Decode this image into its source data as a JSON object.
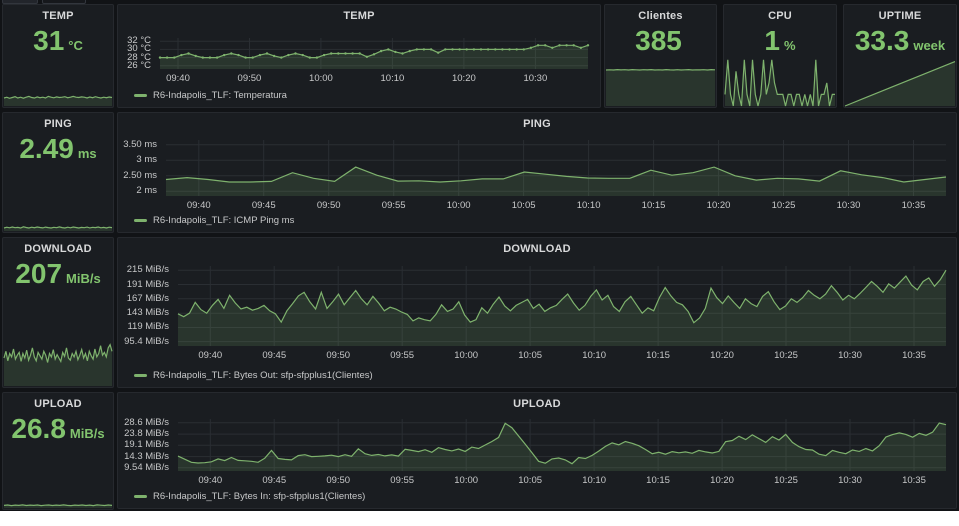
{
  "colors": {
    "accent_green": "#7eb26d",
    "value_green": "#82c46e",
    "panel_bg": "#1a1d21",
    "page_bg": "#111316"
  },
  "panels": {
    "stat_temp": {
      "title": "TEMP",
      "value": "31",
      "unit": "°C"
    },
    "stat_clientes": {
      "title": "Clientes",
      "value": "385",
      "unit": ""
    },
    "stat_cpu": {
      "title": "CPU",
      "value": "1",
      "unit": "%"
    },
    "stat_uptime": {
      "title": "UPTIME",
      "value": "33.3",
      "unit": "week"
    },
    "stat_ping": {
      "title": "PING",
      "value": "2.49",
      "unit": "ms"
    },
    "stat_download": {
      "title": "DOWNLOAD",
      "value": "207",
      "unit": "MiB/s"
    },
    "stat_upload": {
      "title": "UPLOAD",
      "value": "26.8",
      "unit": "MiB/s"
    }
  },
  "chart_data": {
    "temp": {
      "type": "line",
      "title": "TEMP",
      "series_name": "R6-Indapolis_TLF: Temperatura",
      "ylim": [
        25.2,
        32.8
      ],
      "y_ticks": [
        {
          "label": "32 °C",
          "v": 32
        },
        {
          "label": "30 °C",
          "v": 30
        },
        {
          "label": "28 °C",
          "v": 28
        },
        {
          "label": "26 °C",
          "v": 26
        }
      ],
      "x_ticks": [
        "09:40",
        "09:50",
        "10:00",
        "10:10",
        "10:20",
        "10:30"
      ],
      "x_first_frac": 0.042,
      "x_step_frac": 0.167,
      "markers": true,
      "values": [
        28,
        28,
        28,
        28.6,
        29,
        28.4,
        28,
        28,
        28,
        28.6,
        29,
        28.6,
        28,
        28,
        28.6,
        29,
        28.4,
        28,
        28.6,
        29,
        28.6,
        28,
        28,
        28.6,
        29,
        29,
        29,
        29,
        29,
        28.2,
        28.8,
        29.6,
        30,
        29.4,
        29,
        29.6,
        30,
        30,
        30,
        29.2,
        30,
        30,
        30,
        30,
        30,
        30,
        30,
        30,
        30,
        30,
        30,
        30,
        30.4,
        31,
        31,
        30.4,
        31,
        31,
        31,
        30.4,
        31
      ]
    },
    "ping": {
      "type": "line",
      "title": "PING",
      "series_name": "R6-Indapolis_TLF: ICMP Ping ms",
      "ylim": [
        1.85,
        3.65
      ],
      "y_ticks": [
        {
          "label": "3.50 ms",
          "v": 3.5
        },
        {
          "label": "3 ms",
          "v": 3
        },
        {
          "label": "2.50 ms",
          "v": 2.5
        },
        {
          "label": "2 ms",
          "v": 2
        }
      ],
      "x_ticks": [
        "09:40",
        "09:45",
        "09:50",
        "09:55",
        "10:00",
        "10:05",
        "10:10",
        "10:15",
        "10:20",
        "10:25",
        "10:30",
        "10:35"
      ],
      "x_first_frac": 0.042,
      "x_step_frac": 0.0833,
      "markers": false,
      "values": [
        2.38,
        2.44,
        2.38,
        2.3,
        2.3,
        2.32,
        2.6,
        2.42,
        2.32,
        2.78,
        2.52,
        2.33,
        2.34,
        2.3,
        2.34,
        2.4,
        2.4,
        2.62,
        2.55,
        2.48,
        2.43,
        2.42,
        2.42,
        2.68,
        2.52,
        2.6,
        2.78,
        2.5,
        2.36,
        2.42,
        2.4,
        2.33,
        2.66,
        2.53,
        2.44,
        2.3,
        2.38,
        2.46
      ]
    },
    "download": {
      "type": "line",
      "title": "DOWNLOAD",
      "series_name": "R6-Indapolis_TLF: Bytes Out: sfp-sfpplus1(Clientes)",
      "ylim": [
        88,
        222
      ],
      "y_ticks": [
        {
          "label": "215 MiB/s",
          "v": 215
        },
        {
          "label": "191 MiB/s",
          "v": 191
        },
        {
          "label": "167 MiB/s",
          "v": 167
        },
        {
          "label": "143 MiB/s",
          "v": 143
        },
        {
          "label": "119 MiB/s",
          "v": 119
        },
        {
          "label": "95.4 MiB/s",
          "v": 95.4
        }
      ],
      "x_ticks": [
        "09:40",
        "09:45",
        "09:50",
        "09:55",
        "10:00",
        "10:05",
        "10:10",
        "10:15",
        "10:20",
        "10:25",
        "10:30",
        "10:35"
      ],
      "x_first_frac": 0.042,
      "x_step_frac": 0.0833,
      "markers": false,
      "values": [
        142,
        137,
        143,
        161,
        149,
        143,
        156,
        166,
        151,
        173,
        160,
        150,
        153,
        148,
        151,
        156,
        147,
        142,
        128,
        147,
        159,
        172,
        178,
        162,
        150,
        178,
        151,
        162,
        175,
        157,
        169,
        181,
        167,
        157,
        171,
        160,
        147,
        153,
        150,
        145,
        141,
        130,
        135,
        132,
        130,
        141,
        157,
        146,
        150,
        162,
        140,
        128,
        132,
        152,
        143,
        158,
        170,
        155,
        147,
        156,
        161,
        166,
        151,
        158,
        146,
        152,
        156,
        166,
        175,
        160,
        148,
        156,
        171,
        182,
        165,
        173,
        154,
        146,
        162,
        171,
        157,
        143,
        152,
        147,
        169,
        186,
        172,
        161,
        157,
        146,
        127,
        135,
        151,
        185,
        169,
        159,
        172,
        161,
        151,
        167,
        159,
        154,
        171,
        179,
        162,
        149,
        155,
        167,
        161,
        169,
        181,
        173,
        167,
        175,
        189,
        178,
        165,
        173,
        167,
        176,
        186,
        196,
        188,
        178,
        192,
        185,
        195,
        205,
        190,
        182,
        196,
        202,
        188,
        199,
        215
      ]
    },
    "upload": {
      "type": "line",
      "title": "UPLOAD",
      "series_name": "R6-Indapolis_TLF: Bytes In: sfp-sfpplus1(Clientes)",
      "ylim": [
        8.2,
        30.2
      ],
      "y_ticks": [
        {
          "label": "28.6 MiB/s",
          "v": 28.6
        },
        {
          "label": "23.8 MiB/s",
          "v": 23.8
        },
        {
          "label": "19.1 MiB/s",
          "v": 19.1
        },
        {
          "label": "14.3 MiB/s",
          "v": 14.3
        },
        {
          "label": "9.54 MiB/s",
          "v": 9.54
        }
      ],
      "x_ticks": [
        "09:40",
        "09:45",
        "09:50",
        "09:55",
        "10:00",
        "10:05",
        "10:10",
        "10:15",
        "10:20",
        "10:25",
        "10:30",
        "10:35"
      ],
      "x_first_frac": 0.042,
      "x_step_frac": 0.0833,
      "markers": false,
      "values": [
        14.5,
        13.2,
        11.9,
        11.6,
        11.7,
        12.1,
        13.3,
        12.6,
        13.9,
        12.7,
        12.5,
        12.3,
        11.9,
        13.6,
        16.9,
        13.5,
        13.1,
        12.9,
        14.7,
        15.1,
        14.3,
        14.4,
        14.6,
        14.9,
        14.3,
        15.1,
        14.4,
        17.6,
        15.5,
        14.8,
        15.2,
        14.6,
        15.0,
        14.5,
        17.4,
        16.9,
        16.4,
        17.2,
        16.1,
        18.1,
        17.3,
        16.7,
        17.5,
        16.5,
        18.3,
        17.7,
        19.2,
        20.7,
        22.4,
        28.4,
        26.5,
        23.0,
        19.5,
        16.0,
        12.3,
        11.5,
        13.3,
        13.7,
        12.9,
        11.3,
        13.9,
        13.5,
        14.8,
        16.6,
        18.6,
        20.1,
        19.3,
        20.7,
        19.9,
        18.9,
        17.3,
        15.5,
        16.1,
        15.3,
        16.4,
        15.9,
        16.3,
        15.7,
        16.9,
        16.3,
        15.8,
        16.5,
        20.6,
        21.1,
        22.9,
        21.5,
        23.5,
        21.9,
        20.3,
        22.7,
        21.3,
        23.7,
        20.3,
        18.5,
        17.3,
        17.1,
        15.3,
        14.7,
        16.9,
        16.1,
        15.5,
        17.1,
        16.5,
        17.7,
        16.7,
        18.9,
        22.6,
        23.6,
        24.3,
        23.7,
        22.5,
        24.1,
        23.3,
        24.6,
        28.5,
        27.8
      ]
    },
    "sparks": {
      "temp": {
        "ylim": [
          0,
          1
        ],
        "fill": true,
        "values": [
          0.5,
          0.55,
          0.48,
          0.53,
          0.58,
          0.5,
          0.55,
          0.49,
          0.55,
          0.6,
          0.53,
          0.5,
          0.57,
          0.52,
          0.55,
          0.5,
          0.6,
          0.55,
          0.51,
          0.57,
          0.53,
          0.55,
          0.58,
          0.52,
          0.55,
          0.6,
          0.55,
          0.53,
          0.57,
          0.55,
          0.5,
          0.56,
          0.52,
          0.58,
          0.54,
          0.5,
          0.55,
          0.52,
          0.56,
          0.53
        ]
      },
      "clientes": {
        "ylim": [
          0,
          1
        ],
        "fill": true,
        "values": [
          0.9,
          0.905,
          0.9,
          0.91,
          0.902,
          0.908,
          0.9,
          0.91,
          0.904,
          0.9,
          0.908,
          0.902,
          0.91,
          0.9,
          0.906,
          0.9,
          0.91,
          0.903,
          0.9,
          0.908,
          0.9,
          0.905,
          0.91,
          0.9,
          0.906,
          0.902,
          0.908,
          0.9,
          0.91,
          0.904
        ]
      },
      "cpu": {
        "ylim": [
          0,
          4.5
        ],
        "fill": true,
        "values": [
          1,
          4,
          1,
          0,
          3,
          1,
          0,
          4,
          1,
          0,
          4,
          1,
          0,
          1,
          4,
          1,
          2,
          4,
          2,
          1,
          1,
          1,
          0,
          1,
          1,
          0,
          1,
          1,
          0,
          1,
          0,
          1,
          0,
          4,
          0,
          1,
          1,
          2,
          0,
          1,
          1
        ]
      },
      "uptime": {
        "ylim": [
          0,
          1.35
        ],
        "fill": true,
        "values": [
          0,
          0.2,
          0.4,
          0.6,
          0.8,
          1
        ]
      },
      "ping": {
        "ylim": [
          0,
          1
        ],
        "fill": true,
        "values": [
          0.3,
          0.38,
          0.32,
          0.4,
          0.33,
          0.36,
          0.3,
          0.42,
          0.35,
          0.3,
          0.38,
          0.33,
          0.4,
          0.35,
          0.31,
          0.39,
          0.34,
          0.3,
          0.37,
          0.33,
          0.41,
          0.34,
          0.3,
          0.38,
          0.32,
          0.4,
          0.35,
          0.3,
          0.36,
          0.33,
          0.39,
          0.31,
          0.37,
          0.34,
          0.4,
          0.32,
          0.36,
          0.3,
          0.38,
          0.34
        ]
      },
      "download": {
        "ylim": [
          0,
          1
        ],
        "fill": true,
        "values": [
          0.5,
          0.62,
          0.45,
          0.58,
          0.52,
          0.66,
          0.48,
          0.55,
          0.6,
          0.44,
          0.58,
          0.5,
          0.64,
          0.46,
          0.55,
          0.68,
          0.52,
          0.45,
          0.6,
          0.54,
          0.48,
          0.62,
          0.55,
          0.42,
          0.58,
          0.52,
          0.65,
          0.48,
          0.56,
          0.5,
          0.44,
          0.6,
          0.53,
          0.68,
          0.5,
          0.46,
          0.58,
          0.52,
          0.62,
          0.47,
          0.55,
          0.65,
          0.5,
          0.58,
          0.45,
          0.62,
          0.54,
          0.48,
          0.66,
          0.52,
          0.58,
          0.72,
          0.55,
          0.6,
          0.52,
          0.68,
          0.74,
          0.62
        ]
      },
      "upload": {
        "ylim": [
          0,
          1
        ],
        "fill": true,
        "values": [
          0.22,
          0.25,
          0.2,
          0.24,
          0.22,
          0.26,
          0.21,
          0.24,
          0.22,
          0.25,
          0.2,
          0.23,
          0.25,
          0.21,
          0.24,
          0.22,
          0.26,
          0.22,
          0.2,
          0.24,
          0.22,
          0.25,
          0.21,
          0.24,
          0.2,
          0.26,
          0.23,
          0.21,
          0.25,
          0.22
        ]
      }
    }
  }
}
